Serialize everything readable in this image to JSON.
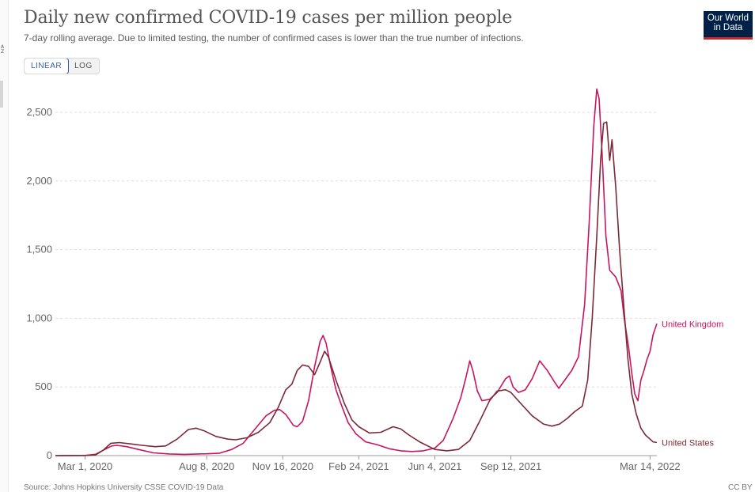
{
  "page": {
    "title": "Daily new confirmed COVID-19 cases per million people",
    "subtitle": "7-day rolling average. Due to limited testing, the number of confirmed cases is lower than the true number of infections.",
    "logo_line1": "Our World",
    "logo_line2": "in Data",
    "edge_letters": "A\nZ",
    "scale_toggle": {
      "linear": "LINEAR",
      "log": "LOG",
      "selected": "LINEAR"
    },
    "source": "Source: Johns Hopkins University CSSE COVID-19 Data",
    "license": "CC BY"
  },
  "colors": {
    "uk": "#c8155f",
    "us": "#7c2a35",
    "logo_bg": "#002147",
    "logo_bar": "#ce261e",
    "toggle_active": "#3360a9"
  },
  "chart_data": {
    "type": "line",
    "ylim": [
      0,
      2500
    ],
    "yticks": [
      0,
      500,
      1000,
      1500,
      2000,
      2500
    ],
    "ytick_labels": [
      "0",
      "500",
      "1,000",
      "1,500",
      "2,000",
      "2,500"
    ],
    "x_start": "2020-01-22",
    "x_end": "2022-03-23",
    "xticks": [
      {
        "date": "2020-03-01",
        "label": "Mar 1, 2020"
      },
      {
        "date": "2020-08-08",
        "label": "Aug 8, 2020"
      },
      {
        "date": "2020-11-16",
        "label": "Nov 16, 2020"
      },
      {
        "date": "2021-02-24",
        "label": "Feb 24, 2021"
      },
      {
        "date": "2021-06-04",
        "label": "Jun 4, 2021"
      },
      {
        "date": "2021-09-12",
        "label": "Sep 12, 2021"
      },
      {
        "date": "2022-03-14",
        "label": "Mar 14, 2022"
      }
    ],
    "grid": true,
    "series": [
      {
        "name": "United Kingdom",
        "color_key": "uk",
        "points": [
          [
            "2020-01-22",
            0
          ],
          [
            "2020-03-01",
            1
          ],
          [
            "2020-03-15",
            10
          ],
          [
            "2020-03-25",
            40
          ],
          [
            "2020-04-05",
            70
          ],
          [
            "2020-04-12",
            75
          ],
          [
            "2020-04-25",
            65
          ],
          [
            "2020-05-10",
            45
          ],
          [
            "2020-05-30",
            20
          ],
          [
            "2020-06-20",
            12
          ],
          [
            "2020-07-10",
            9
          ],
          [
            "2020-08-08",
            13
          ],
          [
            "2020-08-25",
            18
          ],
          [
            "2020-09-10",
            45
          ],
          [
            "2020-09-25",
            90
          ],
          [
            "2020-10-10",
            190
          ],
          [
            "2020-10-25",
            290
          ],
          [
            "2020-11-05",
            330
          ],
          [
            "2020-11-12",
            335
          ],
          [
            "2020-11-20",
            300
          ],
          [
            "2020-11-30",
            220
          ],
          [
            "2020-12-05",
            210
          ],
          [
            "2020-12-12",
            250
          ],
          [
            "2020-12-20",
            400
          ],
          [
            "2020-12-28",
            650
          ],
          [
            "2021-01-04",
            830
          ],
          [
            "2021-01-08",
            875
          ],
          [
            "2021-01-12",
            820
          ],
          [
            "2021-01-18",
            650
          ],
          [
            "2021-01-25",
            480
          ],
          [
            "2021-02-01",
            370
          ],
          [
            "2021-02-10",
            240
          ],
          [
            "2021-02-20",
            160
          ],
          [
            "2021-03-05",
            100
          ],
          [
            "2021-03-20",
            80
          ],
          [
            "2021-04-05",
            50
          ],
          [
            "2021-04-20",
            35
          ],
          [
            "2021-05-05",
            30
          ],
          [
            "2021-05-20",
            35
          ],
          [
            "2021-06-04",
            55
          ],
          [
            "2021-06-15",
            110
          ],
          [
            "2021-06-28",
            270
          ],
          [
            "2021-07-08",
            420
          ],
          [
            "2021-07-15",
            570
          ],
          [
            "2021-07-20",
            690
          ],
          [
            "2021-07-24",
            620
          ],
          [
            "2021-07-30",
            470
          ],
          [
            "2021-08-05",
            400
          ],
          [
            "2021-08-15",
            410
          ],
          [
            "2021-08-25",
            460
          ],
          [
            "2021-09-05",
            560
          ],
          [
            "2021-09-10",
            580
          ],
          [
            "2021-09-15",
            500
          ],
          [
            "2021-09-22",
            460
          ],
          [
            "2021-10-01",
            480
          ],
          [
            "2021-10-10",
            560
          ],
          [
            "2021-10-20",
            690
          ],
          [
            "2021-10-30",
            620
          ],
          [
            "2021-11-08",
            540
          ],
          [
            "2021-11-14",
            490
          ],
          [
            "2021-11-22",
            550
          ],
          [
            "2021-12-01",
            620
          ],
          [
            "2021-12-10",
            720
          ],
          [
            "2021-12-18",
            1100
          ],
          [
            "2021-12-24",
            1700
          ],
          [
            "2021-12-30",
            2400
          ],
          [
            "2022-01-03",
            2670
          ],
          [
            "2022-01-06",
            2600
          ],
          [
            "2022-01-10",
            2200
          ],
          [
            "2022-01-15",
            1600
          ],
          [
            "2022-01-20",
            1350
          ],
          [
            "2022-01-28",
            1300
          ],
          [
            "2022-02-04",
            1200
          ],
          [
            "2022-02-08",
            1000
          ],
          [
            "2022-02-14",
            780
          ],
          [
            "2022-02-18",
            600
          ],
          [
            "2022-02-22",
            450
          ],
          [
            "2022-02-26",
            400
          ],
          [
            "2022-03-02",
            550
          ],
          [
            "2022-03-06",
            620
          ],
          [
            "2022-03-10",
            700
          ],
          [
            "2022-03-14",
            760
          ],
          [
            "2022-03-18",
            880
          ],
          [
            "2022-03-23",
            960
          ]
        ]
      },
      {
        "name": "United States",
        "color_key": "us",
        "points": [
          [
            "2020-01-22",
            0
          ],
          [
            "2020-03-01",
            1
          ],
          [
            "2020-03-15",
            5
          ],
          [
            "2020-03-25",
            40
          ],
          [
            "2020-04-04",
            90
          ],
          [
            "2020-04-15",
            95
          ],
          [
            "2020-04-30",
            85
          ],
          [
            "2020-05-15",
            75
          ],
          [
            "2020-06-01",
            65
          ],
          [
            "2020-06-15",
            70
          ],
          [
            "2020-06-30",
            120
          ],
          [
            "2020-07-15",
            190
          ],
          [
            "2020-07-25",
            200
          ],
          [
            "2020-08-05",
            180
          ],
          [
            "2020-08-20",
            140
          ],
          [
            "2020-09-05",
            120
          ],
          [
            "2020-09-15",
            115
          ],
          [
            "2020-09-30",
            130
          ],
          [
            "2020-10-15",
            170
          ],
          [
            "2020-10-30",
            240
          ],
          [
            "2020-11-10",
            350
          ],
          [
            "2020-11-20",
            480
          ],
          [
            "2020-11-28",
            520
          ],
          [
            "2020-12-05",
            620
          ],
          [
            "2020-12-12",
            660
          ],
          [
            "2020-12-20",
            650
          ],
          [
            "2020-12-28",
            590
          ],
          [
            "2021-01-04",
            680
          ],
          [
            "2021-01-10",
            760
          ],
          [
            "2021-01-15",
            720
          ],
          [
            "2021-01-25",
            550
          ],
          [
            "2021-02-05",
            380
          ],
          [
            "2021-02-15",
            260
          ],
          [
            "2021-02-24",
            210
          ],
          [
            "2021-03-10",
            165
          ],
          [
            "2021-03-25",
            170
          ],
          [
            "2021-04-10",
            210
          ],
          [
            "2021-04-20",
            195
          ],
          [
            "2021-05-01",
            150
          ],
          [
            "2021-05-15",
            100
          ],
          [
            "2021-06-04",
            45
          ],
          [
            "2021-06-20",
            35
          ],
          [
            "2021-07-05",
            45
          ],
          [
            "2021-07-20",
            110
          ],
          [
            "2021-08-01",
            240
          ],
          [
            "2021-08-15",
            400
          ],
          [
            "2021-08-25",
            470
          ],
          [
            "2021-09-05",
            480
          ],
          [
            "2021-09-12",
            460
          ],
          [
            "2021-09-25",
            380
          ],
          [
            "2021-10-10",
            290
          ],
          [
            "2021-10-25",
            230
          ],
          [
            "2021-11-05",
            215
          ],
          [
            "2021-11-15",
            230
          ],
          [
            "2021-11-25",
            270
          ],
          [
            "2021-12-05",
            320
          ],
          [
            "2021-12-15",
            360
          ],
          [
            "2021-12-22",
            550
          ],
          [
            "2021-12-28",
            1000
          ],
          [
            "2022-01-03",
            1600
          ],
          [
            "2022-01-08",
            2150
          ],
          [
            "2022-01-12",
            2420
          ],
          [
            "2022-01-16",
            2430
          ],
          [
            "2022-01-20",
            2150
          ],
          [
            "2022-01-23",
            2300
          ],
          [
            "2022-01-28",
            1950
          ],
          [
            "2022-02-02",
            1500
          ],
          [
            "2022-02-08",
            1050
          ],
          [
            "2022-02-13",
            700
          ],
          [
            "2022-02-18",
            450
          ],
          [
            "2022-02-24",
            300
          ],
          [
            "2022-03-02",
            200
          ],
          [
            "2022-03-08",
            150
          ],
          [
            "2022-03-14",
            120
          ],
          [
            "2022-03-18",
            100
          ],
          [
            "2022-03-23",
            95
          ]
        ]
      }
    ]
  }
}
